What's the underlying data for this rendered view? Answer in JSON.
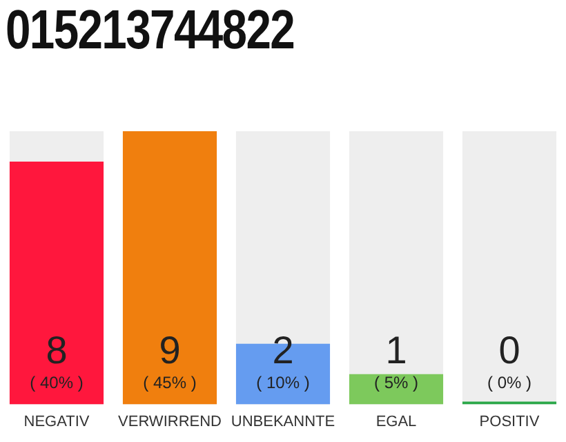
{
  "chart_data": {
    "type": "bar",
    "title": "015213744822",
    "categories": [
      "NEGATIV",
      "VERWIRREND",
      "UNBEKANNTE",
      "EGAL",
      "POSITIV"
    ],
    "values": [
      8,
      9,
      2,
      1,
      0
    ],
    "colors": [
      "#ff173d",
      "#f07f0e",
      "#659cf0",
      "#7dc95c",
      "#2ca84a"
    ],
    "value_labels": [
      "8",
      "9",
      "2",
      "1",
      "0"
    ],
    "annotations": [
      "( 40% )",
      "( 45% )",
      "( 10% )",
      "( 5% )",
      "( 0% )"
    ],
    "tick_labels": "x",
    "grid": false,
    "legend": false
  }
}
